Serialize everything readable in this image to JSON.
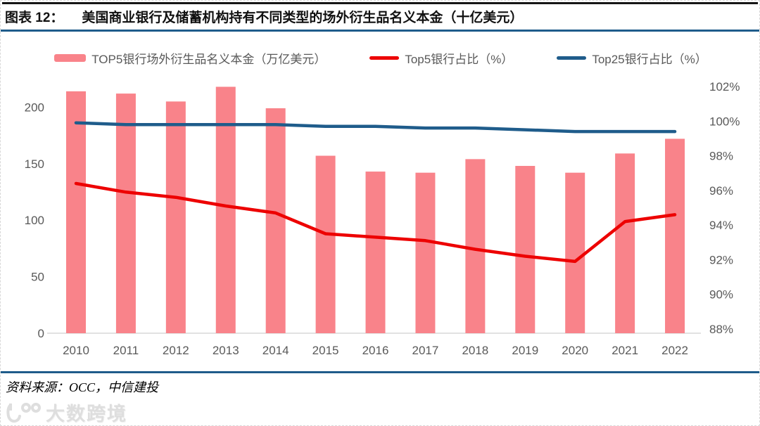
{
  "header": {
    "tag": "图表 12：",
    "title": "美国商业银行及储蓄机构持有不同类型的场外衍生品名义本金（十亿美元）"
  },
  "footer": {
    "source": "资料来源：OCC，中信建投",
    "watermark": "大数跨境"
  },
  "colors": {
    "bar": "#f9838a",
    "top5_line": "#ed0000",
    "top25_line": "#1f5c8b",
    "axis_text": "#595959",
    "divider_blue": "#1f5c8b",
    "baseline_gray": "#d9d9d9"
  },
  "chart_data": {
    "type": "bar",
    "subtype": "combo-bar-line-dual-axis",
    "categories": [
      "2010",
      "2011",
      "2012",
      "2013",
      "2014",
      "2015",
      "2016",
      "2017",
      "2018",
      "2019",
      "2020",
      "2021",
      "2022"
    ],
    "series": [
      {
        "name": "TOP5银行场外衍生品名义本金（万亿美元）",
        "type": "bar",
        "axis": "left",
        "color": "#f9838a",
        "values": [
          214,
          212,
          205,
          218,
          199,
          157,
          143,
          142,
          154,
          148,
          142,
          159,
          172
        ]
      },
      {
        "name": "Top5银行占比（%）",
        "type": "line",
        "axis": "right",
        "color": "#ed0000",
        "values": [
          96.4,
          95.9,
          95.6,
          95.1,
          94.7,
          93.5,
          93.3,
          93.1,
          92.6,
          92.2,
          91.9,
          94.2,
          94.6
        ]
      },
      {
        "name": "Top25银行占比（%）",
        "type": "line",
        "axis": "right",
        "color": "#1f5c8b",
        "values": [
          99.9,
          99.8,
          99.8,
          99.8,
          99.8,
          99.7,
          99.7,
          99.6,
          99.6,
          99.5,
          99.4,
          99.4,
          99.4
        ]
      }
    ],
    "left_axis": {
      "ticks": [
        0,
        50,
        100,
        150,
        200
      ],
      "min": 0,
      "max": 235
    },
    "right_axis": {
      "tick_labels": [
        "88%",
        "90%",
        "92%",
        "94%",
        "96%",
        "98%",
        "100%",
        "102%"
      ],
      "min": 88,
      "max": 102
    },
    "legend_position": "top",
    "grid": false
  }
}
